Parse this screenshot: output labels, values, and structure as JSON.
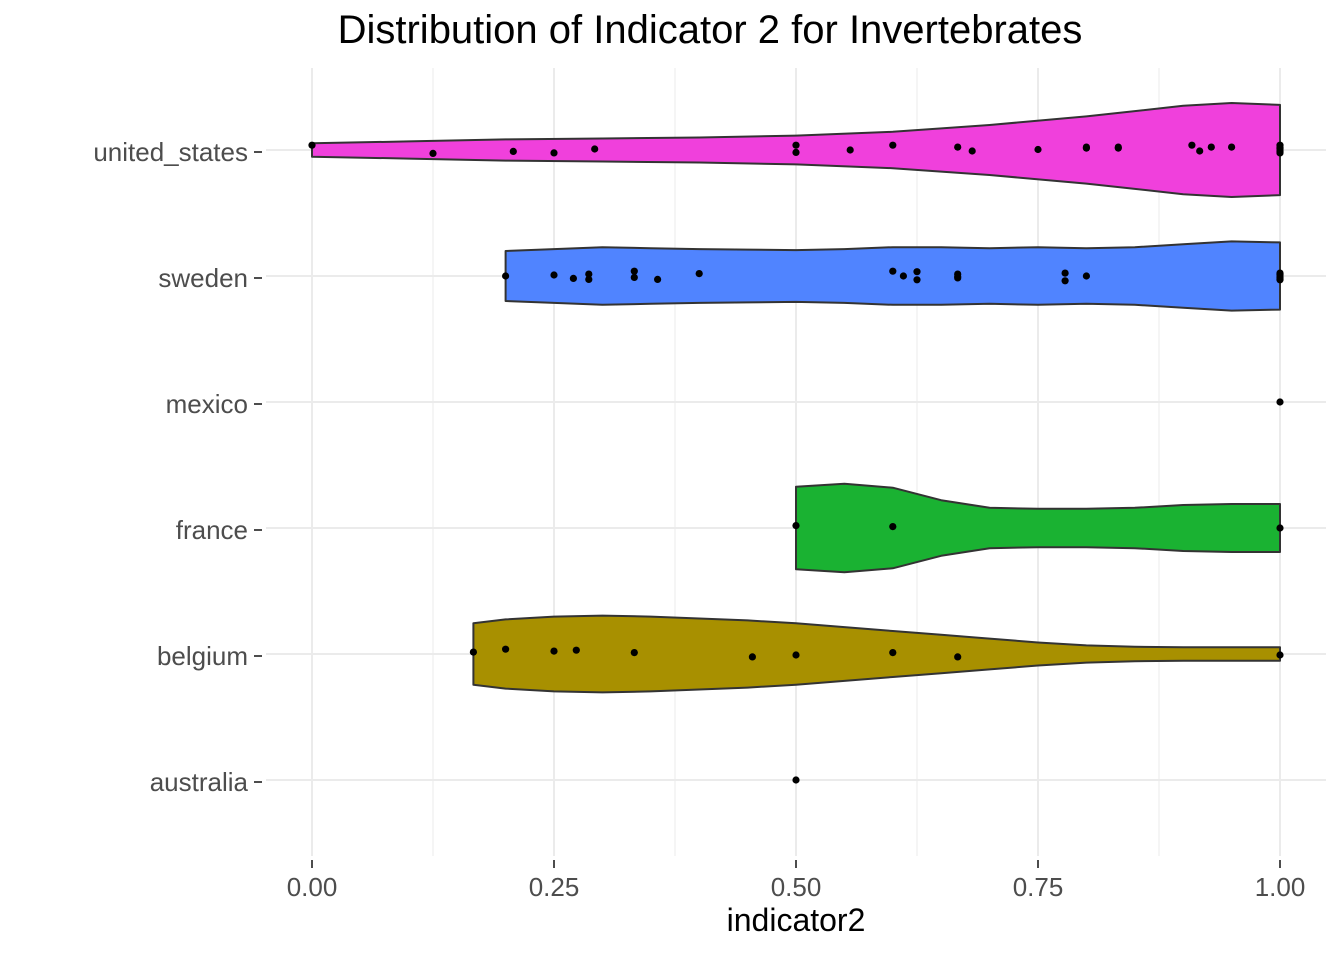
{
  "chart_data": {
    "type": "violin",
    "title": "Distribution of Indicator 2 for Invertebrates",
    "xlabel": "indicator2",
    "ylabel": "",
    "xlim": [
      0,
      1
    ],
    "xticks": [
      "0.00",
      "0.25",
      "0.50",
      "0.75",
      "1.00"
    ],
    "grid": true,
    "legend": "none",
    "categories": [
      "united_states",
      "sweden",
      "mexico",
      "france",
      "belgium",
      "australia"
    ],
    "series": [
      {
        "name": "united_states",
        "color": "#F040DC",
        "range": [
          0,
          1
        ],
        "density": [
          [
            0.0,
            0.14
          ],
          [
            0.1,
            0.18
          ],
          [
            0.2,
            0.22
          ],
          [
            0.3,
            0.24
          ],
          [
            0.4,
            0.26
          ],
          [
            0.5,
            0.3
          ],
          [
            0.6,
            0.38
          ],
          [
            0.7,
            0.52
          ],
          [
            0.8,
            0.7
          ],
          [
            0.9,
            0.92
          ],
          [
            0.95,
            0.98
          ],
          [
            1.0,
            0.94
          ]
        ],
        "points": [
          [
            0.0,
            0.1
          ],
          [
            0.125,
            -0.07
          ],
          [
            0.208,
            -0.03
          ],
          [
            0.25,
            -0.06
          ],
          [
            0.292,
            0.02
          ],
          [
            0.5,
            0.1
          ],
          [
            0.5,
            -0.05
          ],
          [
            0.556,
            0.0
          ],
          [
            0.6,
            0.1
          ],
          [
            0.667,
            0.06
          ],
          [
            0.682,
            -0.02
          ],
          [
            0.75,
            0.01
          ],
          [
            0.8,
            0.06
          ],
          [
            0.8,
            0.04
          ],
          [
            0.833,
            0.06
          ],
          [
            0.833,
            0.04
          ],
          [
            0.909,
            0.1
          ],
          [
            0.917,
            -0.02
          ],
          [
            0.929,
            0.06
          ],
          [
            0.95,
            0.06
          ],
          [
            1.0,
            0.1
          ],
          [
            1.0,
            0.06
          ],
          [
            1.0,
            0.03
          ],
          [
            1.0,
            0.0
          ],
          [
            1.0,
            -0.03
          ],
          [
            1.0,
            -0.06
          ]
        ]
      },
      {
        "name": "sweden",
        "color": "#5084FF",
        "range": [
          0.2,
          1
        ],
        "density": [
          [
            0.2,
            0.52
          ],
          [
            0.25,
            0.56
          ],
          [
            0.3,
            0.6
          ],
          [
            0.35,
            0.58
          ],
          [
            0.4,
            0.56
          ],
          [
            0.45,
            0.55
          ],
          [
            0.5,
            0.54
          ],
          [
            0.55,
            0.56
          ],
          [
            0.6,
            0.6
          ],
          [
            0.65,
            0.6
          ],
          [
            0.7,
            0.58
          ],
          [
            0.75,
            0.6
          ],
          [
            0.8,
            0.58
          ],
          [
            0.85,
            0.6
          ],
          [
            0.9,
            0.66
          ],
          [
            0.95,
            0.72
          ],
          [
            1.0,
            0.7
          ]
        ],
        "points": [
          [
            0.2,
            0.0
          ],
          [
            0.25,
            0.02
          ],
          [
            0.27,
            -0.05
          ],
          [
            0.286,
            0.04
          ],
          [
            0.286,
            -0.07
          ],
          [
            0.333,
            0.1
          ],
          [
            0.333,
            -0.03
          ],
          [
            0.357,
            -0.07
          ],
          [
            0.4,
            0.05
          ],
          [
            0.6,
            0.1
          ],
          [
            0.611,
            0.0
          ],
          [
            0.625,
            0.09
          ],
          [
            0.625,
            -0.08
          ],
          [
            0.667,
            0.04
          ],
          [
            0.667,
            -0.01
          ],
          [
            0.667,
            -0.04
          ],
          [
            0.778,
            0.06
          ],
          [
            0.778,
            -0.1
          ],
          [
            0.8,
            0.0
          ],
          [
            1.0,
            0.06
          ],
          [
            1.0,
            0.03
          ],
          [
            1.0,
            0.0
          ],
          [
            1.0,
            -0.03
          ],
          [
            1.0,
            -0.06
          ],
          [
            1.0,
            -0.08
          ]
        ]
      },
      {
        "name": "mexico",
        "color": "#00BFC4",
        "range": [
          1,
          1
        ],
        "density": [],
        "points": [
          [
            1.0,
            0.0
          ]
        ]
      },
      {
        "name": "france",
        "color": "#1AB232",
        "range": [
          0.5,
          1
        ],
        "density": [
          [
            0.5,
            0.86
          ],
          [
            0.55,
            0.92
          ],
          [
            0.6,
            0.84
          ],
          [
            0.65,
            0.58
          ],
          [
            0.7,
            0.42
          ],
          [
            0.75,
            0.4
          ],
          [
            0.8,
            0.4
          ],
          [
            0.85,
            0.42
          ],
          [
            0.9,
            0.48
          ],
          [
            0.95,
            0.5
          ],
          [
            1.0,
            0.5
          ]
        ],
        "points": [
          [
            0.5,
            0.05
          ],
          [
            0.6,
            0.03
          ],
          [
            1.0,
            0.0
          ]
        ]
      },
      {
        "name": "belgium",
        "color": "#A89000",
        "range": [
          0.1667,
          1
        ],
        "density": [
          [
            0.1667,
            0.64
          ],
          [
            0.2,
            0.72
          ],
          [
            0.25,
            0.78
          ],
          [
            0.3,
            0.8
          ],
          [
            0.35,
            0.78
          ],
          [
            0.4,
            0.74
          ],
          [
            0.45,
            0.7
          ],
          [
            0.5,
            0.64
          ],
          [
            0.55,
            0.56
          ],
          [
            0.6,
            0.48
          ],
          [
            0.65,
            0.4
          ],
          [
            0.7,
            0.32
          ],
          [
            0.75,
            0.24
          ],
          [
            0.8,
            0.18
          ],
          [
            0.85,
            0.15
          ],
          [
            0.9,
            0.14
          ],
          [
            0.95,
            0.14
          ],
          [
            1.0,
            0.14
          ]
        ],
        "points": [
          [
            0.1667,
            0.04
          ],
          [
            0.2,
            0.1
          ],
          [
            0.25,
            0.06
          ],
          [
            0.273,
            0.08
          ],
          [
            0.333,
            0.03
          ],
          [
            0.455,
            -0.06
          ],
          [
            0.5,
            -0.02
          ],
          [
            0.6,
            0.03
          ],
          [
            0.667,
            -0.06
          ],
          [
            1.0,
            -0.02
          ]
        ]
      },
      {
        "name": "australia",
        "color": "#F8766D",
        "range": [
          0.5,
          0.5
        ],
        "density": [],
        "points": [
          [
            0.5,
            0.0
          ]
        ]
      }
    ]
  }
}
